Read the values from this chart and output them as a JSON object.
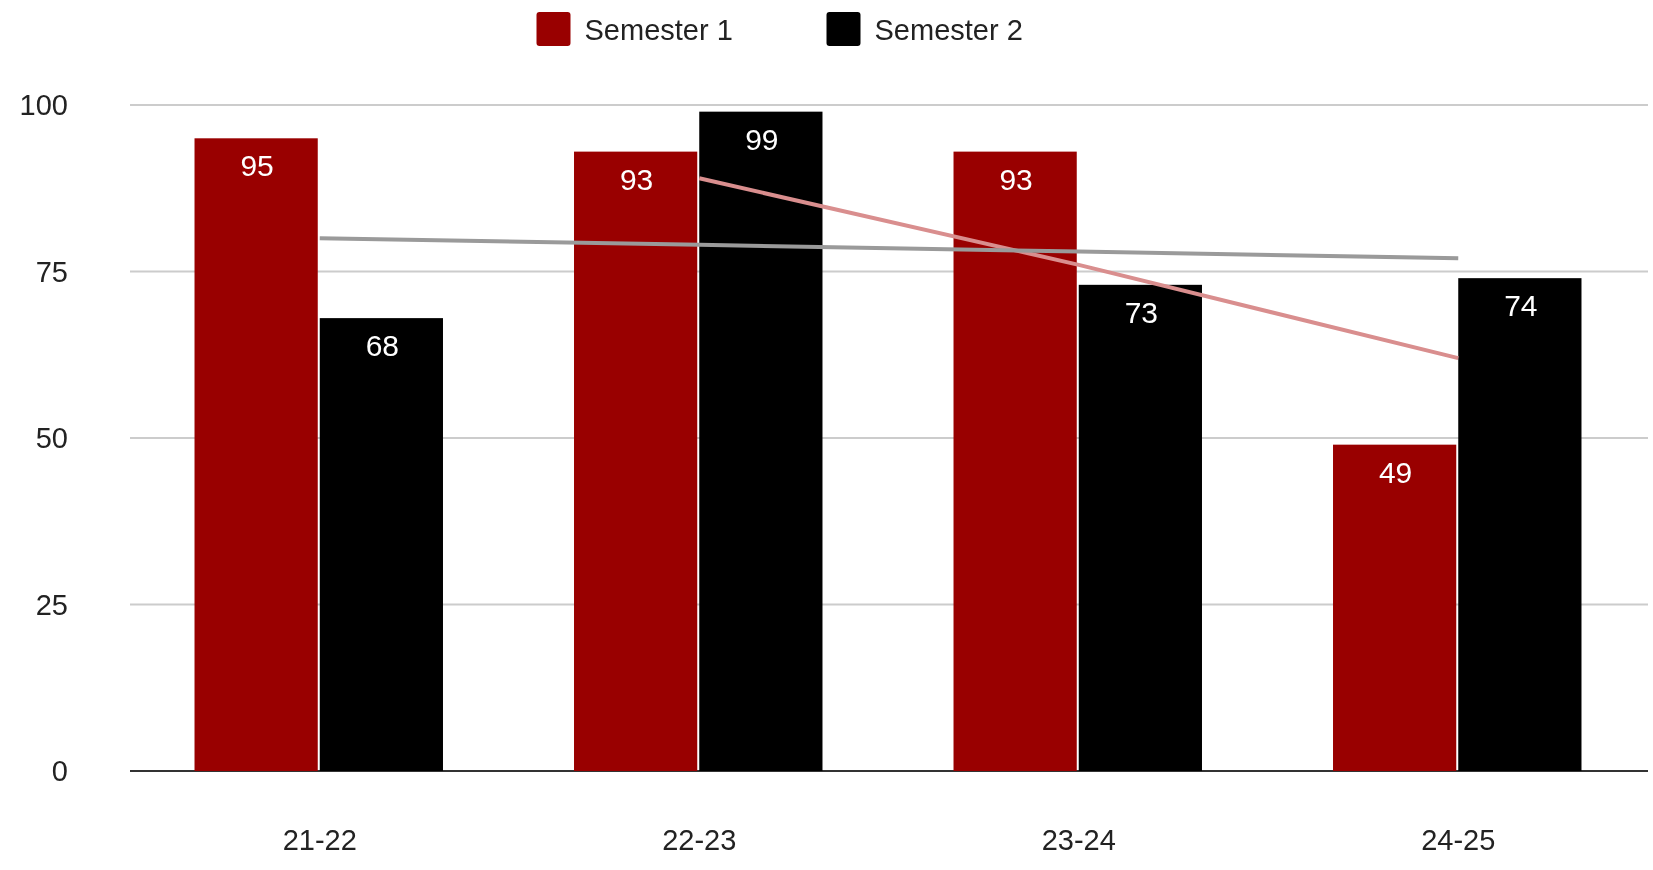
{
  "chart_data": {
    "type": "bar",
    "categories": [
      "21-22",
      "22-23",
      "23-24",
      "24-25"
    ],
    "series": [
      {
        "name": "Semester 1",
        "color": "#990000",
        "values": [
          95,
          93,
          93,
          49
        ],
        "value_labels": [
          "95",
          "93",
          "93",
          "49"
        ]
      },
      {
        "name": "Semester 2",
        "color": "#000000",
        "values": [
          68,
          99,
          73,
          74
        ],
        "value_labels": [
          "68",
          "99",
          "73",
          "74"
        ]
      },
      {
        "type": "line",
        "color": "#d98e8e",
        "values": [
          null,
          89,
          76,
          62
        ]
      },
      {
        "type": "line",
        "color": "#9a9a9a",
        "values": [
          80,
          79,
          78,
          77
        ]
      }
    ],
    "ylim": [
      0,
      100
    ],
    "yticks": [
      0,
      25,
      50,
      75,
      100
    ],
    "grid": "y",
    "legend": "top"
  }
}
